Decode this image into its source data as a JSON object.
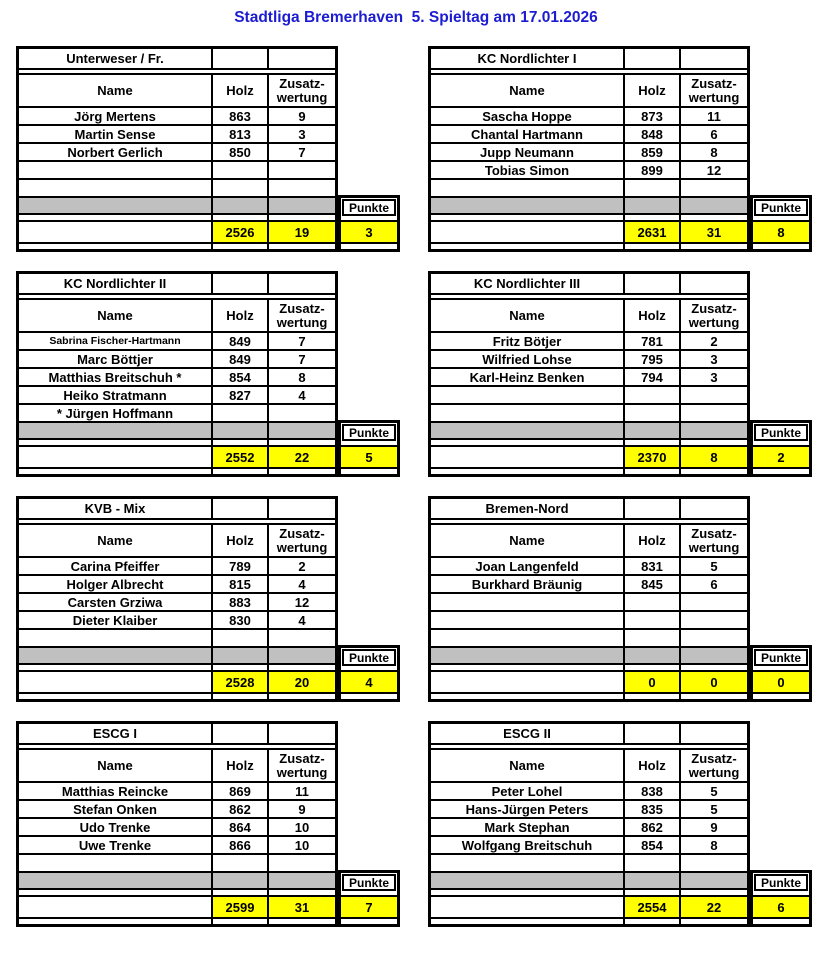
{
  "title": "Stadtliga Bremerhaven  5. Spieltag am 17.01.2026",
  "colors": {
    "title_blue": "#1C1CD2",
    "highlight_yellow": "#FFFF00",
    "band_gray": "#C0C0C0"
  },
  "columns": {
    "name": "Name",
    "holz": "Holz",
    "zusatz": "Zusatz-\nwertung",
    "punkte": "Punkte"
  },
  "tables": [
    {
      "team": "Unterweser / Fr.",
      "players": [
        {
          "name": "Jörg Mertens",
          "holz": "863",
          "zusatz": "9"
        },
        {
          "name": "Martin Sense",
          "holz": "813",
          "zusatz": "3"
        },
        {
          "name": "Norbert Gerlich",
          "holz": "850",
          "zusatz": "7"
        },
        {
          "name": "",
          "holz": "",
          "zusatz": ""
        },
        {
          "name": "",
          "holz": "",
          "zusatz": ""
        }
      ],
      "total_holz": "2526",
      "total_zusatz": "19",
      "punkte": "3"
    },
    {
      "team": "KC Nordlichter I",
      "players": [
        {
          "name": "Sascha Hoppe",
          "holz": "873",
          "zusatz": "11"
        },
        {
          "name": "Chantal Hartmann",
          "holz": "848",
          "zusatz": "6"
        },
        {
          "name": "Jupp Neumann",
          "holz": "859",
          "zusatz": "8"
        },
        {
          "name": "Tobias Simon",
          "holz": "899",
          "zusatz": "12"
        },
        {
          "name": "",
          "holz": "",
          "zusatz": ""
        }
      ],
      "total_holz": "2631",
      "total_zusatz": "31",
      "punkte": "8"
    },
    {
      "team": "KC Nordlichter II",
      "players": [
        {
          "name": "Sabrina Fischer-Hartmann",
          "holz": "849",
          "zusatz": "7"
        },
        {
          "name": "Marc Böttjer",
          "holz": "849",
          "zusatz": "7"
        },
        {
          "name": "Matthias Breitschuh *",
          "holz": "854",
          "zusatz": "8"
        },
        {
          "name": "Heiko Stratmann",
          "holz": "827",
          "zusatz": "4"
        },
        {
          "name": "* Jürgen Hoffmann",
          "holz": "",
          "zusatz": ""
        }
      ],
      "total_holz": "2552",
      "total_zusatz": "22",
      "punkte": "5"
    },
    {
      "team": "KC Nordlichter III",
      "players": [
        {
          "name": "Fritz Bötjer",
          "holz": "781",
          "zusatz": "2"
        },
        {
          "name": "Wilfried Lohse",
          "holz": "795",
          "zusatz": "3"
        },
        {
          "name": "Karl-Heinz Benken",
          "holz": "794",
          "zusatz": "3"
        },
        {
          "name": "",
          "holz": "",
          "zusatz": ""
        },
        {
          "name": "",
          "holz": "",
          "zusatz": ""
        }
      ],
      "total_holz": "2370",
      "total_zusatz": "8",
      "punkte": "2"
    },
    {
      "team": "KVB - Mix",
      "players": [
        {
          "name": "Carina Pfeiffer",
          "holz": "789",
          "zusatz": "2"
        },
        {
          "name": "Holger Albrecht",
          "holz": "815",
          "zusatz": "4"
        },
        {
          "name": "Carsten Grziwa",
          "holz": "883",
          "zusatz": "12"
        },
        {
          "name": "Dieter Klaiber",
          "holz": "830",
          "zusatz": "4"
        },
        {
          "name": "",
          "holz": "",
          "zusatz": ""
        }
      ],
      "total_holz": "2528",
      "total_zusatz": "20",
      "punkte": "4"
    },
    {
      "team": "Bremen-Nord",
      "players": [
        {
          "name": "Joan Langenfeld",
          "holz": "831",
          "zusatz": "5"
        },
        {
          "name": "Burkhard Bräunig",
          "holz": "845",
          "zusatz": "6"
        },
        {
          "name": "",
          "holz": "",
          "zusatz": ""
        },
        {
          "name": "",
          "holz": "",
          "zusatz": ""
        },
        {
          "name": "",
          "holz": "",
          "zusatz": ""
        }
      ],
      "total_holz": "0",
      "total_zusatz": "0",
      "punkte": "0"
    },
    {
      "team": "ESCG I",
      "players": [
        {
          "name": "Matthias Reincke",
          "holz": "869",
          "zusatz": "11"
        },
        {
          "name": "Stefan Onken",
          "holz": "862",
          "zusatz": "9"
        },
        {
          "name": "Udo Trenke",
          "holz": "864",
          "zusatz": "10"
        },
        {
          "name": "Uwe Trenke",
          "holz": "866",
          "zusatz": "10"
        },
        {
          "name": "",
          "holz": "",
          "zusatz": ""
        }
      ],
      "total_holz": "2599",
      "total_zusatz": "31",
      "punkte": "7"
    },
    {
      "team": "ESCG II",
      "players": [
        {
          "name": "Peter Lohel",
          "holz": "838",
          "zusatz": "5"
        },
        {
          "name": "Hans-Jürgen Peters",
          "holz": "835",
          "zusatz": "5"
        },
        {
          "name": "Mark Stephan",
          "holz": "862",
          "zusatz": "9"
        },
        {
          "name": "Wolfgang Breitschuh",
          "holz": "854",
          "zusatz": "8"
        },
        {
          "name": "",
          "holz": "",
          "zusatz": ""
        }
      ],
      "total_holz": "2554",
      "total_zusatz": "22",
      "punkte": "6"
    }
  ]
}
